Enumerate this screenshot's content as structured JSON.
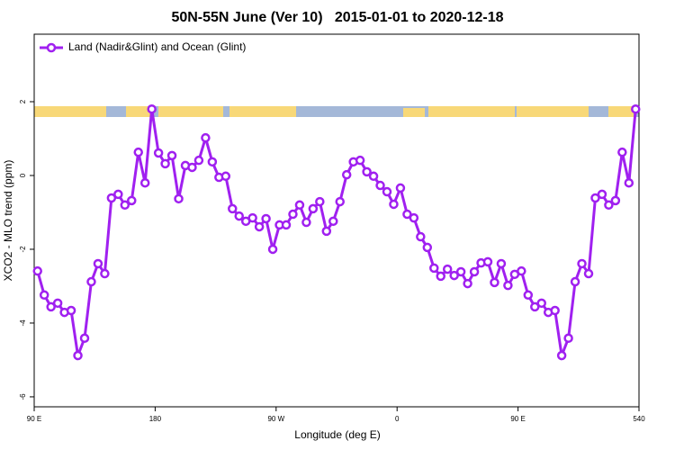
{
  "chart_data": {
    "type": "line",
    "title": "50N-55N June (Ver 10)   2015-01-01 to 2020-12-18",
    "x_label": "Longitude (deg E)",
    "y_label": "XCO2 - MLO trend (ppm)",
    "x": [
      92.5,
      97.5,
      102.5,
      107.5,
      112.5,
      117.5,
      122.5,
      127.5,
      132.5,
      137.5,
      142.5,
      147.5,
      152.5,
      157.5,
      162.5,
      167.5,
      172.5,
      177.5,
      182.5,
      187.5,
      192.5,
      197.5,
      202.5,
      207.5,
      212.5,
      217.5,
      222.5,
      227.5,
      232.5,
      237.5,
      242.5,
      247.5,
      252.5,
      257.5,
      262.5,
      267.5,
      272.5,
      277.5,
      282.5,
      287.5,
      292.5,
      297.5,
      302.5,
      307.5,
      312.5,
      317.5,
      322.5,
      327.5,
      332.5,
      337.5,
      342.5,
      347.5,
      352.5,
      357.5,
      362.5,
      367.5,
      372.5,
      377.5,
      382.5,
      387.5,
      392.5,
      397.5,
      402.5,
      407.5,
      412.5,
      417.5,
      422.5,
      427.5,
      432.5,
      437.5,
      442.5,
      447.5,
      452.5,
      457.5,
      462.5,
      467.5,
      472.5,
      477.5,
      482.5,
      487.5,
      492.5,
      497.5,
      502.5,
      507.5,
      512.5,
      517.5,
      522.5,
      527.5,
      532.5,
      537.5
    ],
    "series": [
      {
        "name": "Land (Nadir&Glint) and Ocean (Glint)",
        "color": "#a020f0",
        "values": [
          -2.59,
          -3.24,
          -3.56,
          -3.46,
          -3.71,
          -3.66,
          -4.88,
          -4.41,
          -2.88,
          -2.39,
          -2.66,
          -0.61,
          -0.51,
          -0.8,
          -0.68,
          0.63,
          -0.2,
          1.8,
          0.61,
          0.32,
          0.54,
          -0.63,
          0.27,
          0.22,
          0.41,
          1.02,
          0.37,
          -0.05,
          -0.02,
          -0.9,
          -1.1,
          -1.24,
          -1.15,
          -1.39,
          -1.17,
          -2.0,
          -1.34,
          -1.34,
          -1.05,
          -0.8,
          -1.27,
          -0.9,
          -0.71,
          -1.51,
          -1.24,
          -0.71,
          0.02,
          0.37,
          0.41,
          0.1,
          -0.02,
          -0.27,
          -0.44,
          -0.78,
          -0.34,
          -1.05,
          -1.15,
          -1.66,
          -1.95,
          -2.51,
          -2.73,
          -2.54,
          -2.71,
          -2.61,
          -2.93,
          -2.61,
          -2.37,
          -2.34,
          -2.9,
          -2.39,
          -2.98,
          -2.68,
          -2.59,
          -3.24,
          -3.56,
          -3.46,
          -3.71,
          -3.66,
          -4.88,
          -4.41,
          -2.88,
          -2.39,
          -2.66,
          -0.61,
          -0.51,
          -0.8,
          -0.68,
          0.63,
          -0.2,
          1.8
        ]
      }
    ],
    "xlim": [
      90,
      540
    ],
    "xticks": [
      {
        "value": 90,
        "label": "90 E"
      },
      180,
      {
        "value": 270,
        "label": "90 W"
      },
      {
        "value": 360,
        "label": "0"
      },
      {
        "value": 450,
        "label": "90 E"
      },
      540
    ],
    "ylim": [
      -6.27,
      3.83
    ],
    "yticks": [
      -6,
      -4,
      -2,
      0,
      2
    ],
    "legend": "top-left"
  }
}
